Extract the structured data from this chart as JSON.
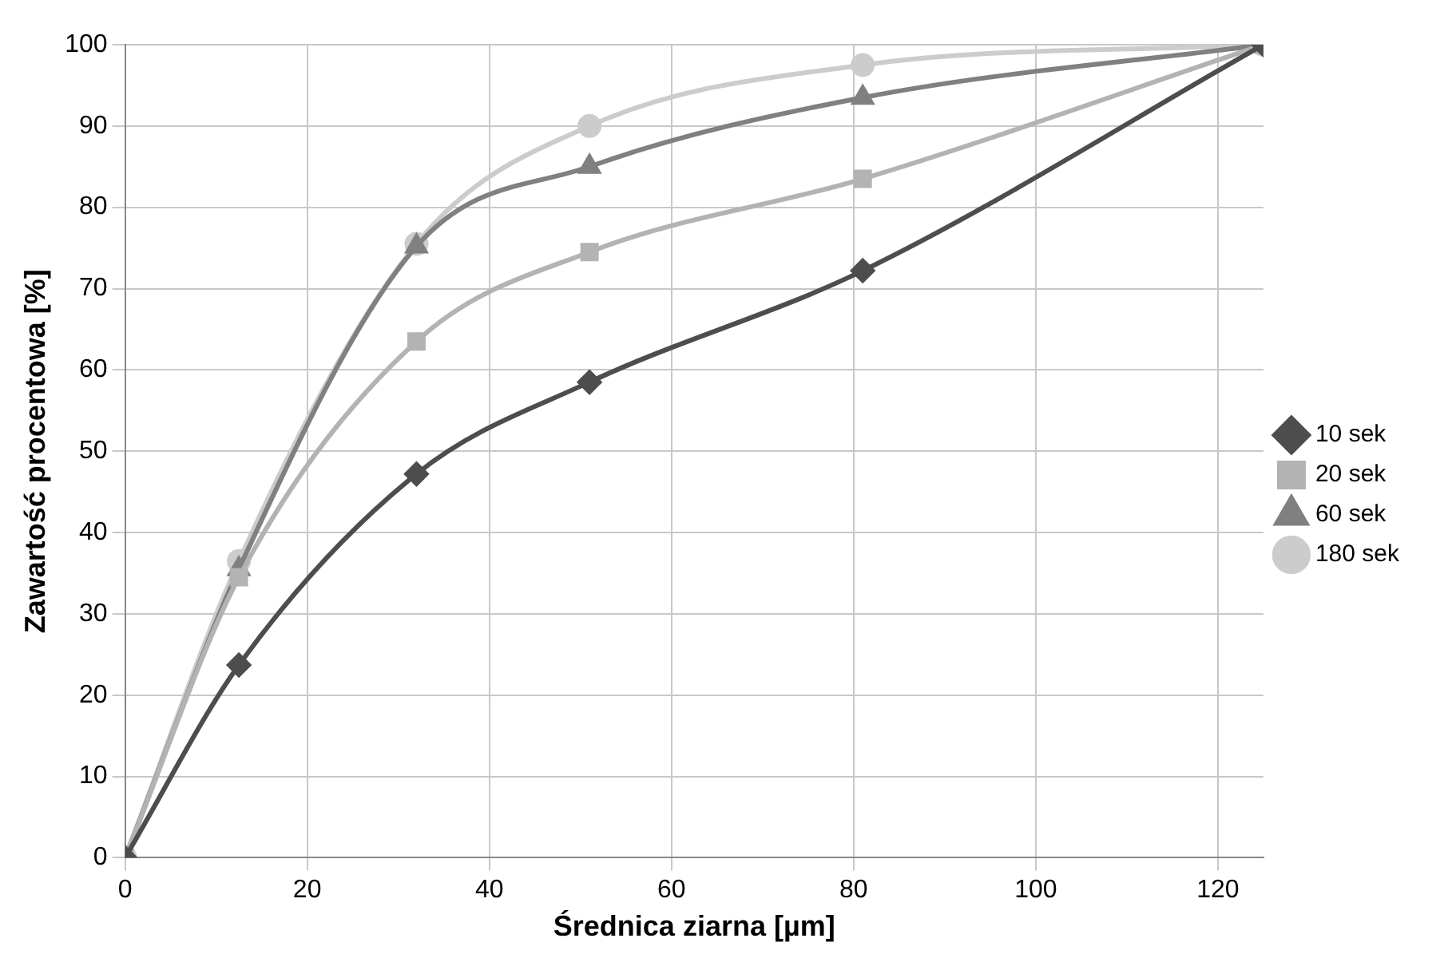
{
  "chart_data": {
    "type": "line",
    "xlabel": "Średnica ziarna [µm]",
    "ylabel": "Zawartość procentowa [%]",
    "x": [
      0,
      12.5,
      32,
      51,
      81,
      125
    ],
    "series": [
      {
        "name": "10 sek",
        "color": "#4d4d4d",
        "marker": "diamond",
        "values": [
          0,
          23.7,
          47.2,
          58.5,
          72.2,
          100
        ]
      },
      {
        "name": "20 sek",
        "color": "#b3b3b3",
        "marker": "square",
        "values": [
          0,
          34.5,
          63.5,
          74.5,
          83.5,
          100
        ]
      },
      {
        "name": "60 sek",
        "color": "#808080",
        "marker": "triangle",
        "values": [
          0,
          35.5,
          75.2,
          85,
          93.5,
          100
        ]
      },
      {
        "name": "180 sek",
        "color": "#cccccc",
        "marker": "circle",
        "values": [
          0,
          36.5,
          75.5,
          90,
          97.5,
          100
        ]
      }
    ],
    "xlim": [
      0,
      125
    ],
    "xticks": [
      0,
      20,
      40,
      60,
      80,
      100,
      120
    ],
    "ylim": [
      0,
      100
    ],
    "yticks": [
      0,
      10,
      20,
      30,
      40,
      50,
      60,
      70,
      80,
      90,
      100
    ],
    "grid": true,
    "legend": "right"
  }
}
